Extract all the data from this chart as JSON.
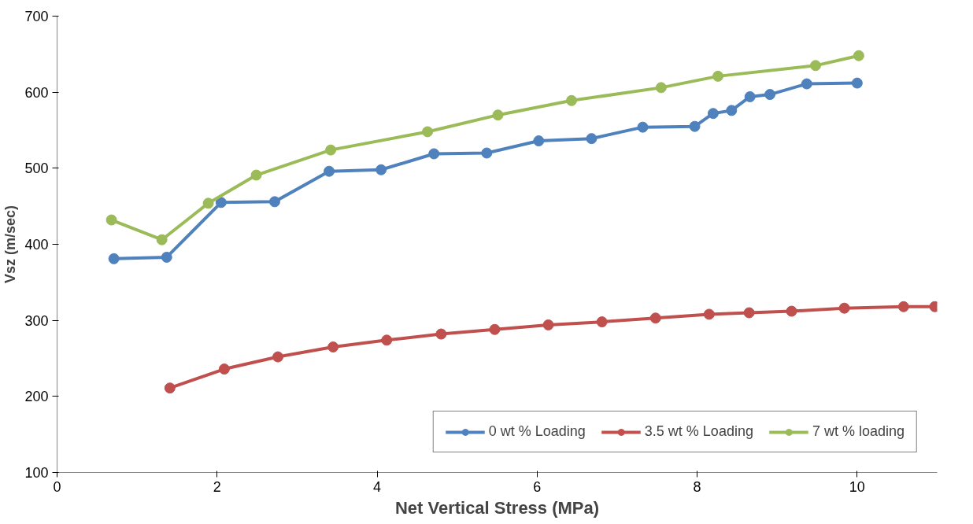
{
  "chart_data": {
    "type": "line",
    "xlabel": "Net Vertical Stress (MPa)",
    "ylabel": "Vsz (m/sec)",
    "xlim": [
      0,
      11
    ],
    "xticks": [
      0,
      2,
      4,
      6,
      8,
      10
    ],
    "ylim": [
      100,
      700
    ],
    "yticks": [
      100,
      200,
      300,
      400,
      500,
      600,
      700
    ],
    "grid": false,
    "legend": "bottom right",
    "marker": "circle",
    "line_style": "solid",
    "series": [
      {
        "name": "0 wt % Loading",
        "color": "#4f81bd",
        "x": [
          0.71,
          1.37,
          2.05,
          2.72,
          3.4,
          4.05,
          4.71,
          5.37,
          6.02,
          6.68,
          7.32,
          7.97,
          8.2,
          8.43,
          8.66,
          8.91,
          9.37,
          10.0
        ],
        "values": [
          381,
          383,
          455,
          456,
          496,
          498,
          519,
          520,
          536,
          539,
          554,
          555,
          572,
          576,
          594,
          597,
          611,
          612
        ]
      },
      {
        "name": "3.5 wt % Loading",
        "color": "#c0504d",
        "x": [
          1.41,
          2.09,
          2.76,
          3.45,
          4.12,
          4.8,
          5.47,
          6.14,
          6.81,
          7.48,
          8.15,
          8.65,
          9.18,
          9.84,
          10.58,
          10.97
        ],
        "values": [
          211,
          236,
          252,
          265,
          274,
          282,
          288,
          294,
          298,
          303,
          308,
          310,
          312,
          316,
          318,
          318
        ]
      },
      {
        "name": "7 wt % loading",
        "color": "#9bbb59",
        "x": [
          0.68,
          1.31,
          1.89,
          2.49,
          3.42,
          4.63,
          5.51,
          6.43,
          7.55,
          8.26,
          9.48,
          10.02
        ],
        "values": [
          432,
          406,
          454,
          491,
          524,
          548,
          570,
          589,
          606,
          621,
          635,
          648
        ]
      }
    ]
  }
}
